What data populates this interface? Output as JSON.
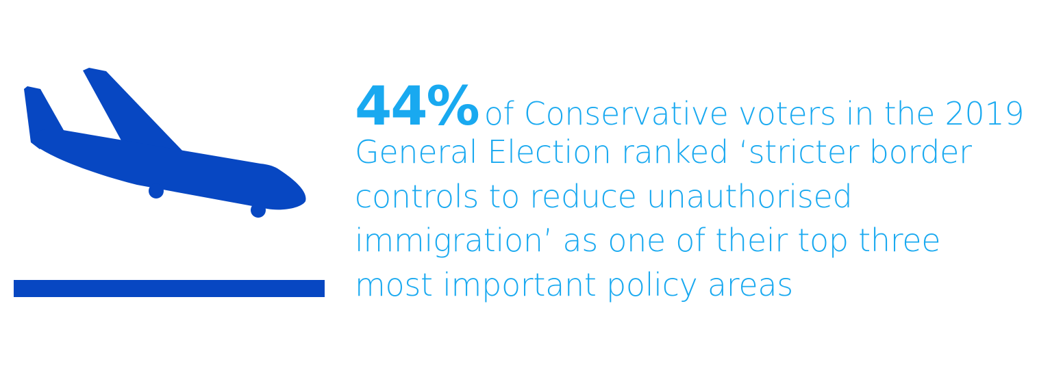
{
  "stat": {
    "value": "44%",
    "lines": [
      "of Conservative voters in the 2019",
      "General Election ranked ‘stricter border",
      "controls to reduce unauthorised",
      "immigration’ as one of their top three",
      "most important policy areas"
    ]
  },
  "icons": {
    "plane": "airplane-landing-icon",
    "runway": "runway-bar"
  },
  "colors": {
    "icon_blue": "#0747c2",
    "text_blue": "#19a9f0",
    "background": "#ffffff"
  }
}
